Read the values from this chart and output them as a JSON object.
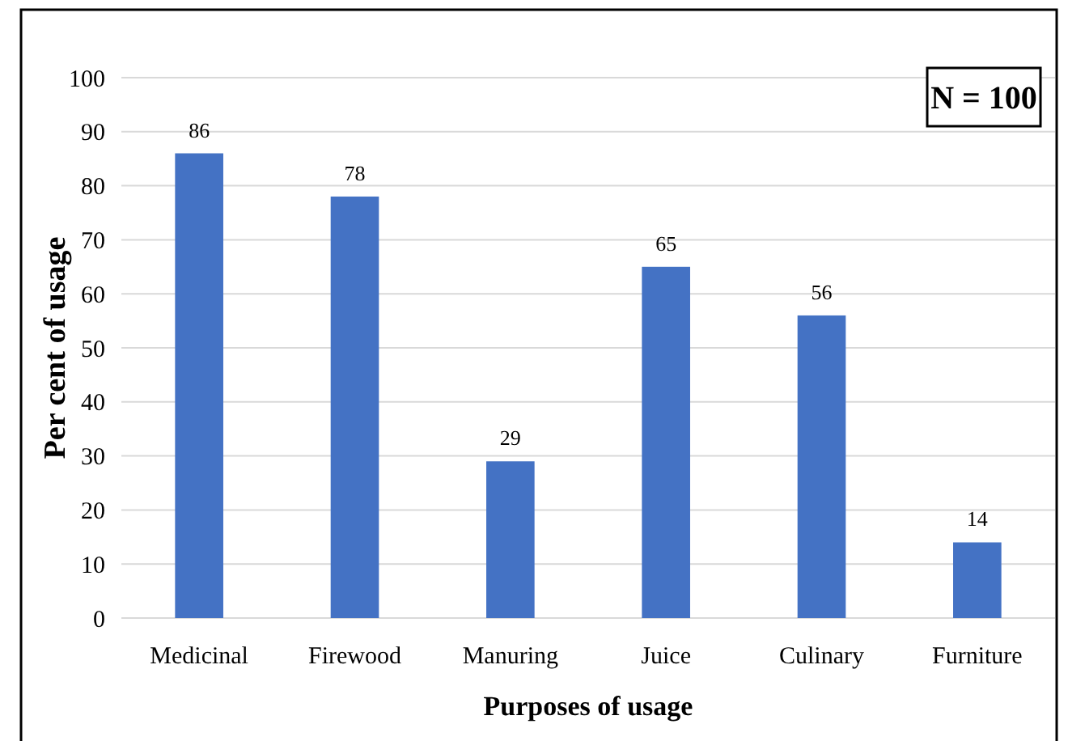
{
  "chart_data": {
    "type": "bar",
    "xlabel": "Purposes of usage",
    "ylabel": "Per cent of usage",
    "categories": [
      "Medicinal",
      "Firewood",
      "Manuring",
      "Juice",
      "Culinary",
      "Furniture"
    ],
    "values": [
      86,
      78,
      29,
      65,
      56,
      14
    ],
    "color": "#4472c4",
    "ylim": [
      0,
      100
    ],
    "yticks": [
      0,
      10,
      20,
      30,
      40,
      50,
      60,
      70,
      80,
      90,
      100
    ],
    "grid": "y",
    "data_labels": true,
    "annotations": [
      "N = 100"
    ]
  }
}
